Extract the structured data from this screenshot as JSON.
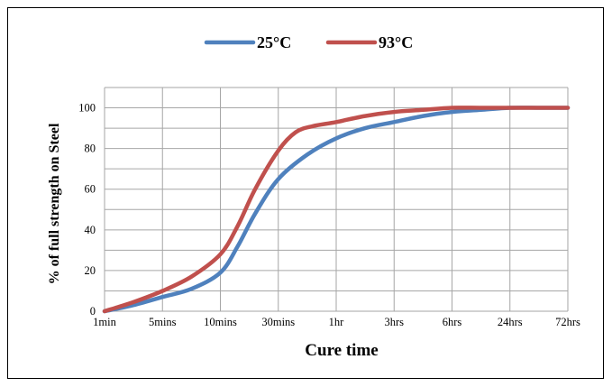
{
  "chart_data": {
    "type": "line",
    "title": "",
    "xlabel": "Cure time",
    "ylabel": "% of full strength on Steel",
    "categories": [
      "1min",
      "5mins",
      "10mins",
      "30mins",
      "1hr",
      "3hrs",
      "6hrs",
      "24hrs",
      "72hrs"
    ],
    "yticks": [
      "0",
      "20",
      "40",
      "60",
      "80",
      "100"
    ],
    "ylim": [
      0,
      110
    ],
    "grid": true,
    "legend_position": "top",
    "series": [
      {
        "name": "25°C",
        "color": "#4F81BD",
        "x": [
          0,
          0.5,
          1,
          1.5,
          2,
          2.3,
          2.6,
          3,
          3.5,
          4,
          4.5,
          5,
          5.5,
          6,
          6.5,
          7,
          7.5,
          8
        ],
        "values": [
          0,
          3,
          7,
          11,
          19,
          32,
          48,
          65,
          77,
          85,
          90,
          93,
          96,
          98,
          99,
          100,
          100,
          100
        ]
      },
      {
        "name": "93°C",
        "color": "#C0504D",
        "x": [
          0,
          0.5,
          1,
          1.5,
          2,
          2.3,
          2.6,
          3,
          3.3,
          3.6,
          4,
          4.5,
          5,
          5.5,
          6,
          6.5,
          7,
          7.5,
          8
        ],
        "values": [
          0,
          4.5,
          10,
          17,
          28,
          42,
          60,
          79,
          88,
          91,
          93,
          96,
          98,
          99,
          100,
          100,
          100,
          100,
          100
        ]
      }
    ]
  }
}
